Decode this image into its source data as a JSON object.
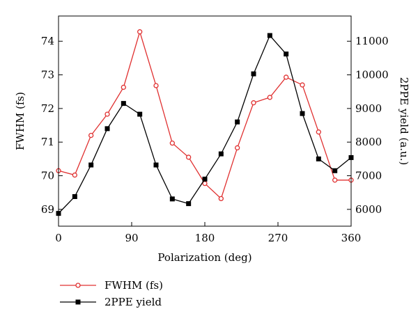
{
  "chart_data": {
    "type": "line",
    "xlabel": "Polarization (deg)",
    "ylabel_left": "FWHM (fs)",
    "ylabel_right": "2PPE yield (a.u.)",
    "xlim": [
      0,
      360
    ],
    "ylim_left": [
      68.5,
      74.75
    ],
    "ylim_right": [
      5500,
      11750
    ],
    "xticks": [
      0,
      90,
      180,
      270,
      360
    ],
    "yticks_left": [
      69,
      70,
      71,
      72,
      73,
      74
    ],
    "yticks_right": [
      6000,
      7000,
      8000,
      9000,
      10000,
      11000
    ],
    "legend_position": "bottom-left",
    "grid": false,
    "series": [
      {
        "name": "FWHM (fs)",
        "axis": "left",
        "color": "#e03030",
        "marker": "open-circle",
        "x": [
          0,
          20,
          40,
          60,
          80,
          100,
          120,
          140,
          160,
          180,
          200,
          220,
          240,
          260,
          280,
          300,
          320,
          340,
          360
        ],
        "values": [
          70.15,
          70.02,
          71.2,
          71.83,
          72.63,
          74.28,
          72.68,
          70.97,
          70.55,
          69.77,
          69.32,
          70.83,
          72.17,
          72.33,
          72.93,
          72.7,
          71.3,
          69.87,
          69.87
        ]
      },
      {
        "name": "2PPE yield",
        "axis": "right",
        "color": "#000000",
        "marker": "filled-square",
        "x": [
          0,
          20,
          40,
          60,
          80,
          100,
          120,
          140,
          160,
          180,
          200,
          220,
          240,
          260,
          280,
          300,
          320,
          340,
          360
        ],
        "values": [
          5880,
          6380,
          7320,
          8400,
          9150,
          8830,
          7320,
          6310,
          6170,
          6900,
          7650,
          8600,
          10030,
          11170,
          10620,
          8850,
          7500,
          7150,
          7540
        ]
      }
    ]
  }
}
